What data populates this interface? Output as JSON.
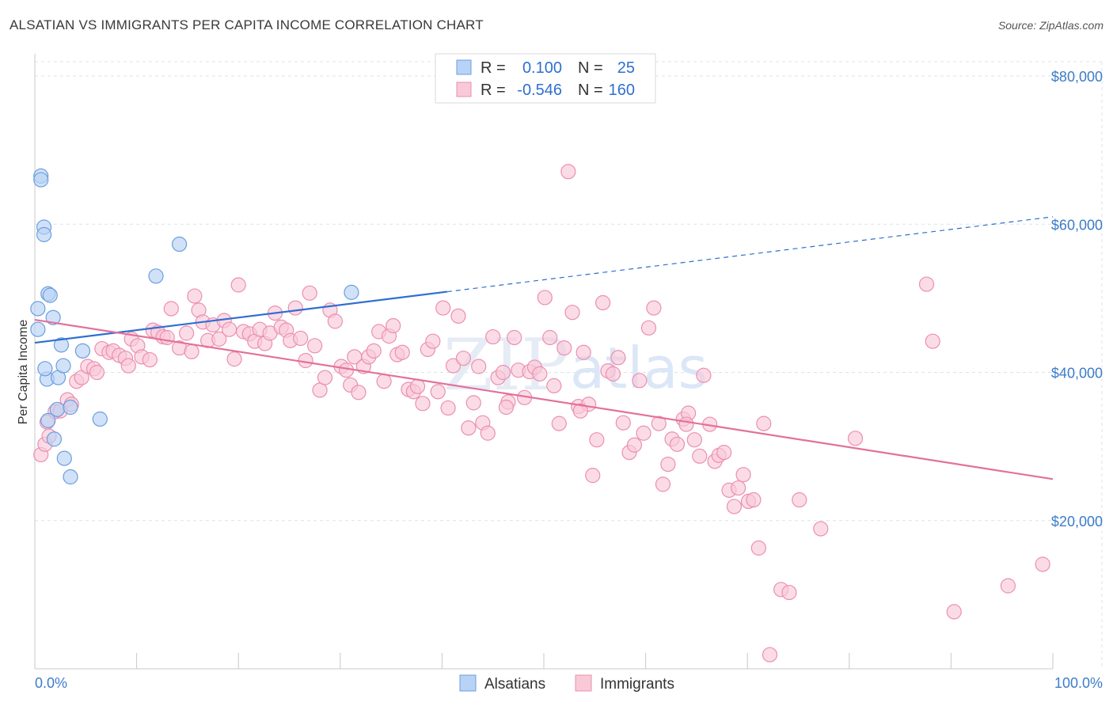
{
  "title": "ALSATIAN VS IMMIGRANTS PER CAPITA INCOME CORRELATION CHART",
  "source": "Source: ZipAtlas.com",
  "watermark": {
    "part1": "ZIP",
    "part2": "atlas"
  },
  "colors": {
    "alsatians_fill": "#b8d3f5",
    "alsatians_stroke": "#6b9ee0",
    "alsatians_line": "#2e6fd0",
    "immigrants_fill": "#f9c9d8",
    "immigrants_stroke": "#eb8fb0",
    "immigrants_line": "#e3709b",
    "grid": "#dde3ea",
    "axis_label": "#3d7cc9"
  },
  "legend": {
    "row1": {
      "r_label": "R =",
      "r_value": "0.100",
      "n_label": "N =",
      "n_value": "25"
    },
    "row2": {
      "r_label": "R =",
      "r_value": "-0.546",
      "n_label": "N =",
      "n_value": "160"
    }
  },
  "chart_data": {
    "type": "scatter",
    "ylabel": "Per Capita Income",
    "xlim": [
      0,
      100
    ],
    "ylim": [
      0,
      80000
    ],
    "x_tick_labels": [
      "0.0%",
      "100.0%"
    ],
    "y_ticks": [
      {
        "value": 20000,
        "label": "$20,000"
      },
      {
        "value": 40000,
        "label": "$40,000"
      },
      {
        "value": 60000,
        "label": "$60,000"
      },
      {
        "value": 80000,
        "label": "$80,000"
      }
    ],
    "grid": true,
    "legend_position": "top-center",
    "series": [
      {
        "name": "Alsatians",
        "r": 0.1,
        "n": 25,
        "trend": {
          "x0": 0,
          "y0": 44000,
          "x_solid_end": 40.5,
          "x1": 100,
          "y1": 61000
        },
        "points": [
          [
            0.3,
            45800
          ],
          [
            0.3,
            48600
          ],
          [
            0.6,
            66500
          ],
          [
            0.6,
            66000
          ],
          [
            0.9,
            59600
          ],
          [
            0.9,
            58600
          ],
          [
            1.3,
            50600
          ],
          [
            1.5,
            50400
          ],
          [
            1.8,
            47400
          ],
          [
            1.2,
            39100
          ],
          [
            1.9,
            31000
          ],
          [
            1.3,
            33500
          ],
          [
            2.2,
            35000
          ],
          [
            2.3,
            39300
          ],
          [
            2.6,
            43700
          ],
          [
            2.8,
            40900
          ],
          [
            2.9,
            28400
          ],
          [
            3.5,
            35300
          ],
          [
            3.5,
            25900
          ],
          [
            4.7,
            42900
          ],
          [
            6.4,
            33700
          ],
          [
            14.2,
            57300
          ],
          [
            11.9,
            53000
          ],
          [
            31.1,
            50800
          ],
          [
            1.0,
            40500
          ]
        ]
      },
      {
        "name": "Immigrants",
        "r": -0.546,
        "n": 160,
        "trend": {
          "x0": 0,
          "y0": 47100,
          "x1": 100,
          "y1": 25600
        },
        "points": [
          [
            0.6,
            28900
          ],
          [
            1.0,
            30300
          ],
          [
            1.2,
            33300
          ],
          [
            1.4,
            31400
          ],
          [
            2.0,
            34700
          ],
          [
            2.5,
            34800
          ],
          [
            3.2,
            36300
          ],
          [
            3.6,
            35700
          ],
          [
            4.1,
            38800
          ],
          [
            4.6,
            39300
          ],
          [
            5.2,
            40800
          ],
          [
            5.8,
            40500
          ],
          [
            6.1,
            40000
          ],
          [
            6.6,
            43200
          ],
          [
            7.3,
            42700
          ],
          [
            7.7,
            42900
          ],
          [
            8.3,
            42300
          ],
          [
            8.9,
            41900
          ],
          [
            9.2,
            40900
          ],
          [
            9.5,
            44500
          ],
          [
            10.1,
            43600
          ],
          [
            10.5,
            42100
          ],
          [
            11.3,
            41700
          ],
          [
            11.6,
            45700
          ],
          [
            12.1,
            45400
          ],
          [
            12.6,
            44800
          ],
          [
            13.0,
            44700
          ],
          [
            13.4,
            48600
          ],
          [
            14.2,
            43300
          ],
          [
            14.9,
            45300
          ],
          [
            15.4,
            42800
          ],
          [
            15.7,
            50300
          ],
          [
            16.1,
            48400
          ],
          [
            16.5,
            46800
          ],
          [
            17.0,
            44300
          ],
          [
            17.5,
            46400
          ],
          [
            18.1,
            44500
          ],
          [
            18.6,
            47000
          ],
          [
            19.1,
            45800
          ],
          [
            19.6,
            41800
          ],
          [
            20.0,
            51800
          ],
          [
            20.5,
            45500
          ],
          [
            21.1,
            45200
          ],
          [
            21.6,
            44200
          ],
          [
            22.1,
            45800
          ],
          [
            22.6,
            43900
          ],
          [
            23.1,
            45300
          ],
          [
            23.6,
            48000
          ],
          [
            24.2,
            46100
          ],
          [
            24.7,
            45700
          ],
          [
            25.1,
            44300
          ],
          [
            25.6,
            48700
          ],
          [
            26.1,
            44600
          ],
          [
            26.6,
            41600
          ],
          [
            27.0,
            50700
          ],
          [
            27.5,
            43600
          ],
          [
            28.0,
            37600
          ],
          [
            28.5,
            39300
          ],
          [
            29.0,
            48400
          ],
          [
            29.5,
            46900
          ],
          [
            30.1,
            40800
          ],
          [
            30.6,
            40300
          ],
          [
            31.0,
            38300
          ],
          [
            31.4,
            42100
          ],
          [
            31.8,
            37300
          ],
          [
            32.3,
            40800
          ],
          [
            32.8,
            42100
          ],
          [
            33.3,
            42900
          ],
          [
            33.8,
            45500
          ],
          [
            34.3,
            38800
          ],
          [
            34.8,
            44900
          ],
          [
            35.2,
            46300
          ],
          [
            35.6,
            42400
          ],
          [
            36.1,
            42700
          ],
          [
            36.7,
            37700
          ],
          [
            37.2,
            37400
          ],
          [
            37.6,
            38100
          ],
          [
            38.1,
            35800
          ],
          [
            38.6,
            43100
          ],
          [
            39.1,
            44200
          ],
          [
            39.6,
            37400
          ],
          [
            40.1,
            48700
          ],
          [
            40.6,
            35200
          ],
          [
            41.1,
            40900
          ],
          [
            41.6,
            47600
          ],
          [
            42.1,
            41900
          ],
          [
            42.6,
            32500
          ],
          [
            43.1,
            35900
          ],
          [
            43.6,
            40800
          ],
          [
            44.0,
            33200
          ],
          [
            44.5,
            31800
          ],
          [
            45.0,
            44800
          ],
          [
            45.5,
            39300
          ],
          [
            46.0,
            40000
          ],
          [
            46.5,
            36000
          ],
          [
            47.1,
            44700
          ],
          [
            47.5,
            40300
          ],
          [
            48.1,
            36600
          ],
          [
            48.6,
            40100
          ],
          [
            49.1,
            40700
          ],
          [
            49.6,
            39800
          ],
          [
            50.1,
            50100
          ],
          [
            50.6,
            44700
          ],
          [
            51.0,
            38200
          ],
          [
            51.5,
            33100
          ],
          [
            52.0,
            43300
          ],
          [
            52.4,
            67100
          ],
          [
            52.8,
            48100
          ],
          [
            53.4,
            35400
          ],
          [
            53.9,
            42700
          ],
          [
            54.4,
            35700
          ],
          [
            54.8,
            26100
          ],
          [
            55.2,
            30900
          ],
          [
            55.8,
            49400
          ],
          [
            56.3,
            40200
          ],
          [
            56.8,
            39800
          ],
          [
            57.3,
            42000
          ],
          [
            57.8,
            33200
          ],
          [
            58.4,
            29200
          ],
          [
            58.9,
            30200
          ],
          [
            59.4,
            38900
          ],
          [
            59.8,
            31800
          ],
          [
            60.3,
            46000
          ],
          [
            60.8,
            48700
          ],
          [
            61.3,
            33100
          ],
          [
            61.7,
            24900
          ],
          [
            62.2,
            27600
          ],
          [
            62.6,
            31000
          ],
          [
            63.1,
            30300
          ],
          [
            63.7,
            33700
          ],
          [
            64.2,
            34500
          ],
          [
            64.8,
            30900
          ],
          [
            65.3,
            28700
          ],
          [
            65.7,
            39600
          ],
          [
            66.3,
            33000
          ],
          [
            66.8,
            28000
          ],
          [
            67.2,
            28800
          ],
          [
            67.7,
            29200
          ],
          [
            68.2,
            24100
          ],
          [
            68.7,
            21900
          ],
          [
            69.1,
            24400
          ],
          [
            69.6,
            26200
          ],
          [
            70.1,
            22600
          ],
          [
            70.6,
            22800
          ],
          [
            71.1,
            16300
          ],
          [
            71.6,
            33100
          ],
          [
            72.2,
            1900
          ],
          [
            73.3,
            10700
          ],
          [
            74.1,
            10300
          ],
          [
            75.1,
            22800
          ],
          [
            77.2,
            18900
          ],
          [
            80.6,
            31100
          ],
          [
            87.6,
            51900
          ],
          [
            88.2,
            44200
          ],
          [
            90.3,
            7700
          ],
          [
            95.6,
            11200
          ],
          [
            99.0,
            14100
          ],
          [
            64.0,
            33000
          ],
          [
            53.6,
            34800
          ],
          [
            46.3,
            35300
          ]
        ]
      }
    ]
  }
}
